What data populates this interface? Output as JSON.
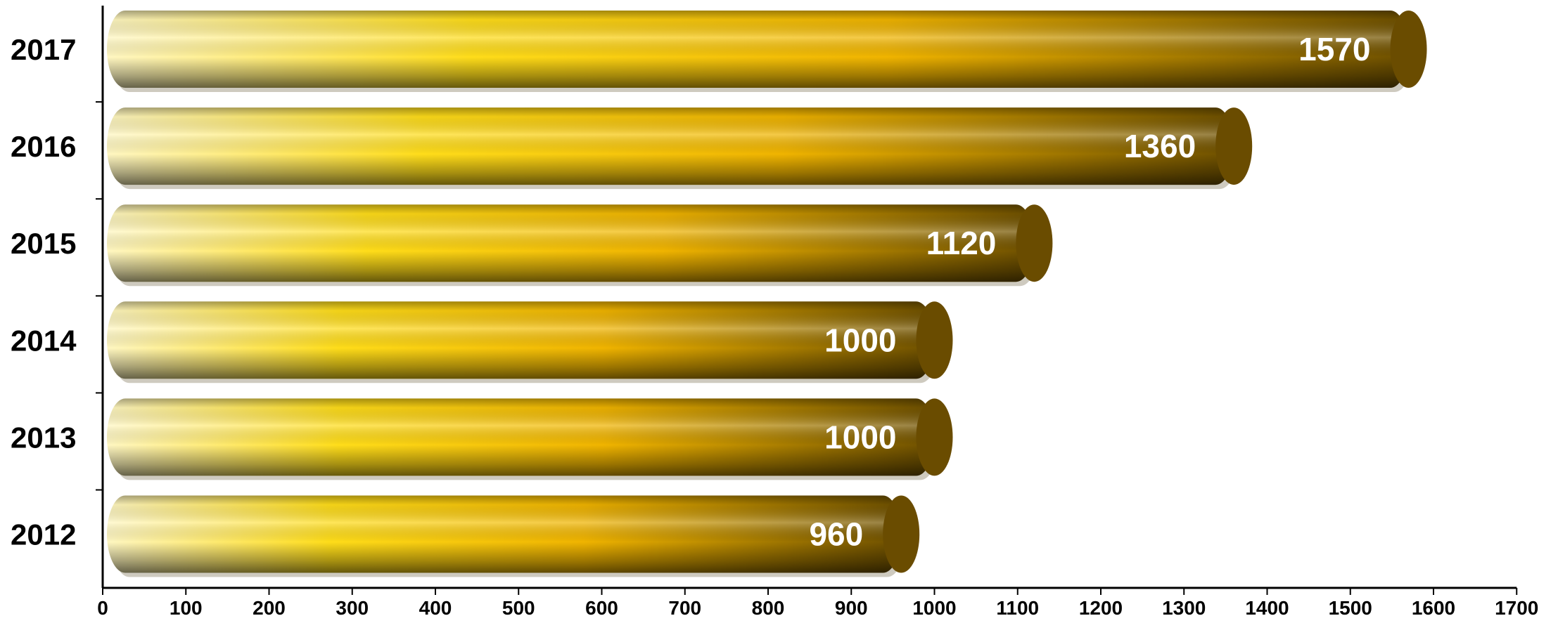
{
  "chart_data": {
    "type": "bar",
    "orientation": "horizontal",
    "categories": [
      "2017",
      "2016",
      "2015",
      "2014",
      "2013",
      "2012"
    ],
    "values": [
      1570,
      1360,
      1120,
      1000,
      1000,
      960
    ],
    "data_labels": [
      "1570",
      "1360",
      "1120",
      "1000",
      "1000",
      "960"
    ],
    "x_ticks": [
      "0",
      "100",
      "200",
      "300",
      "400",
      "500",
      "600",
      "700",
      "800",
      "900",
      "1000",
      "1100",
      "1200",
      "1300",
      "1400",
      "1500",
      "1600",
      "1700"
    ],
    "xlim": [
      0,
      1700
    ],
    "grid": false,
    "legend": "none",
    "title": "",
    "xlabel": "",
    "ylabel": "",
    "bar_style": "3d-cylinder",
    "colors": {
      "highlight": "#fff7c2",
      "bright": "#ffdd1a",
      "mid": "#f0b400",
      "dark": "#6e5000",
      "cap": "#6a4c00",
      "shadow": "#3c2c00"
    }
  }
}
